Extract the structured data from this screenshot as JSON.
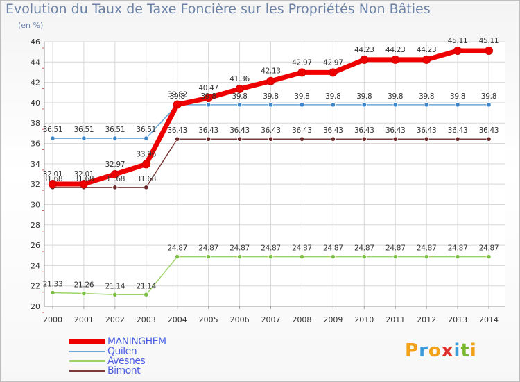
{
  "title": "Evolution du Taux de Taxe Foncière sur les Propriétés Non Bâties",
  "subtitle": "(en %)",
  "logo": {
    "letters": [
      "P",
      "r",
      "o",
      "x",
      "i",
      "t",
      "i"
    ],
    "colors": [
      "#f2a11b",
      "#3b9ad9",
      "#f2a11b",
      "#e2312d",
      "#3b9ad9",
      "#7ab832",
      "#f2a11b"
    ]
  },
  "chart_data": {
    "type": "line",
    "categories": [
      "2000",
      "2001",
      "2002",
      "2003",
      "2004",
      "2005",
      "2006",
      "2007",
      "2008",
      "2009",
      "2010",
      "2011",
      "2012",
      "2013",
      "2014"
    ],
    "ylim": [
      20,
      46
    ],
    "yticks": [
      "20",
      "22",
      "24",
      "26",
      "28",
      "30",
      "32",
      "34",
      "36",
      "38",
      "40",
      "42",
      "44",
      "46"
    ],
    "grid": true,
    "legend_position": "bottom-left",
    "series": [
      {
        "name": "Quilen",
        "color": "#6aa6d8",
        "dot": "#3f86c8",
        "width": 1.5,
        "label_color": "#333333",
        "values": [
          36.51,
          36.51,
          36.51,
          36.51,
          39.8,
          39.8,
          39.8,
          39.8,
          39.8,
          39.8,
          39.8,
          39.8,
          39.8,
          39.8,
          39.8
        ],
        "labels": [
          "36.51",
          "36.51",
          "36.51",
          "36.51",
          "39.8",
          "39.8",
          "39.8",
          "39.8",
          "39.8",
          "39.8",
          "39.8",
          "39.8",
          "39.8",
          "39.8",
          "39.8"
        ]
      },
      {
        "name": "Avesnes",
        "color": "#9ed36a",
        "dot": "#7cc143",
        "width": 1.5,
        "label_color": "#333333",
        "values": [
          21.33,
          21.26,
          21.14,
          21.14,
          24.87,
          24.87,
          24.87,
          24.87,
          24.87,
          24.87,
          24.87,
          24.87,
          24.87,
          24.87,
          24.87
        ],
        "labels": [
          "21.33",
          "21.26",
          "21.14",
          "21.14",
          "24.87",
          "24.87",
          "24.87",
          "24.87",
          "24.87",
          "24.87",
          "24.87",
          "24.87",
          "24.87",
          "24.87",
          "24.87"
        ]
      },
      {
        "name": "Bimont",
        "color": "#7a3a3a",
        "dot": "#6b2a2a",
        "width": 1.5,
        "label_color": "#333333",
        "values": [
          31.68,
          31.68,
          31.68,
          31.68,
          36.43,
          36.43,
          36.43,
          36.43,
          36.43,
          36.43,
          36.43,
          36.43,
          36.43,
          36.43,
          36.43
        ],
        "labels": [
          "31.68",
          "31.68",
          "31.68",
          "31.68",
          "36.43",
          "36.43",
          "36.43",
          "36.43",
          "36.43",
          "36.43",
          "36.43",
          "36.43",
          "36.43",
          "36.43",
          "36.43"
        ]
      },
      {
        "name": "MANINGHEM",
        "color": "#ee0000",
        "dot": "#ee0000",
        "width": 7,
        "label_color": "#333333",
        "values": [
          32.01,
          32.01,
          32.97,
          33.96,
          39.82,
          40.47,
          41.36,
          42.13,
          42.97,
          42.97,
          44.23,
          44.23,
          44.23,
          45.11,
          45.11
        ],
        "labels": [
          "32.01",
          "32.01",
          "32.97",
          "33.96",
          "39.82",
          "40.47",
          "41.36",
          "42.13",
          "42.97",
          "42.97",
          "44.23",
          "44.23",
          "44.23",
          "45.11",
          "45.11"
        ]
      }
    ],
    "legend": [
      {
        "name": "MANINGHEM",
        "color": "#ee0000",
        "text_color": "#4a5fe0"
      },
      {
        "name": "Quilen",
        "color": "#6aa6d8",
        "text_color": "#4a5fe0"
      },
      {
        "name": "Avesnes",
        "color": "#9ed36a",
        "text_color": "#4a5fe0"
      },
      {
        "name": "Bimont",
        "color": "#7a3a3a",
        "text_color": "#4a5fe0"
      }
    ]
  }
}
